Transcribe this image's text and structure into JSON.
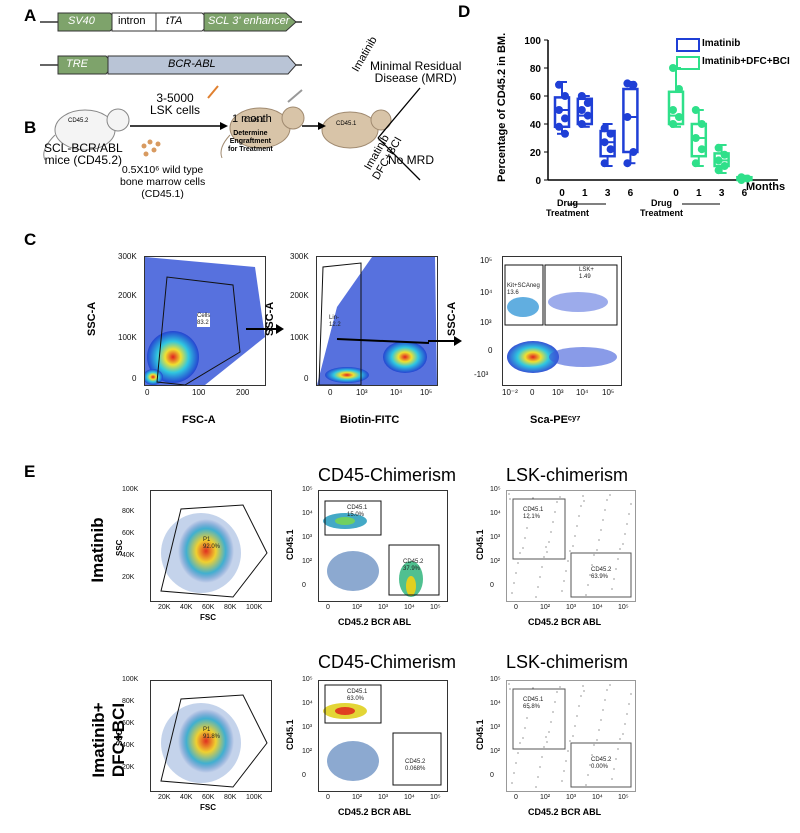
{
  "panels": {
    "a": "A",
    "b": "B",
    "c": "C",
    "d": "D",
    "e": "E"
  },
  "panel_a": {
    "row1": {
      "sv40": "SV40",
      "intron": "intron",
      "tta": "tTA",
      "enhancer": "SCL 3' enhancer"
    },
    "row2": {
      "tre": "TRE",
      "bcrabl": "BCR-ABL"
    }
  },
  "panel_b": {
    "donor_cells": "3-5000\nLSK cells",
    "donor_mouse": "SCL-BCR/ABL\nmice (CD45.2)",
    "wt_cells": "0.5X10⁶ wild type\nbone marrow cells\n(CD45.1)",
    "one_month": "1 month",
    "engraft": "Determine\nEngraftment\nfor Treatment",
    "imatinib": "Imatinib",
    "imatinib_dfc": "Imatinib\nDFC+BCI",
    "mrd": "Minimal Residual\nDisease (MRD)",
    "no_mrd": "No MRD",
    "mouse_tag1": "CD45.2",
    "mouse_tag2": "CD45.1",
    "mouse_tag3": "CD45.1"
  },
  "panel_c": {
    "plot1": {
      "ylabel": "SSC-A",
      "xlabel": "FSC-A",
      "gate": "Cells\n83.2",
      "yticks": [
        "300K",
        "200K",
        "100K",
        "0"
      ],
      "xticks": [
        "0",
        "100",
        "200"
      ]
    },
    "plot2": {
      "ylabel": "SSC-A",
      "xlabel": "Biotin-FITC",
      "gate": "Lin-\n12.2",
      "yticks": [
        "300K",
        "200K",
        "100K",
        "0"
      ],
      "xticks": [
        "0",
        "10³",
        "10⁴",
        "10⁵"
      ]
    },
    "plot3": {
      "ylabel": "SSC-A",
      "xlabel": "Sca-PEᶜʸ⁷",
      "gate1": "Kit+SCAneg\n13.6",
      "gate2": "LSK+\n1.49",
      "yticks": [
        "10⁵",
        "10⁴",
        "10³",
        "0",
        "-10³"
      ],
      "xticks": [
        "10⁻²",
        "0",
        "10³",
        "10⁴",
        "10⁵"
      ]
    }
  },
  "panel_d": {
    "ylabel": "Percentage of CD45.2 in BM.",
    "xlabel": "Months",
    "yticks": [
      "0",
      "20",
      "40",
      "60",
      "80",
      "100"
    ],
    "group_label": "Drug\nTreatment",
    "legend": [
      "Imatinib",
      "Imatinib+DFC+BCI"
    ],
    "colors": {
      "imatinib": "#1f3fd6",
      "combo": "#2fe08a"
    }
  },
  "chart_data": {
    "type": "box",
    "title": "",
    "ylabel": "Percentage of CD45.2 in BM.",
    "xlabel": "Months",
    "ylim": [
      0,
      100
    ],
    "categories": [
      "0",
      "1",
      "3",
      "6"
    ],
    "series": [
      {
        "name": "Imatinib",
        "boxes": [
          {
            "x": "0",
            "min": 33,
            "q1": 38,
            "median": 50,
            "q3": 59,
            "max": 70,
            "points": [
              68,
              60,
              50,
              44,
              38,
              33
            ]
          },
          {
            "x": "1",
            "min": 38,
            "q1": 40,
            "median": 46,
            "q3": 58,
            "max": 60,
            "points": [
              60,
              55,
              50,
              46,
              40
            ]
          },
          {
            "x": "3",
            "min": 10,
            "q1": 17,
            "median": 27,
            "q3": 35,
            "max": 40,
            "points": [
              37,
              33,
              27,
              22,
              12
            ]
          },
          {
            "x": "6",
            "min": 12,
            "q1": 20,
            "median": 45,
            "q3": 65,
            "max": 70,
            "points": [
              69,
              68,
              45,
              20,
              12
            ]
          }
        ]
      },
      {
        "name": "Imatinib+DFC+BCI",
        "boxes": [
          {
            "x": "0",
            "min": 38,
            "q1": 40,
            "median": 46,
            "q3": 63,
            "max": 80,
            "points": [
              80,
              65,
              50,
              45,
              40
            ]
          },
          {
            "x": "1",
            "min": 10,
            "q1": 17,
            "median": 30,
            "q3": 40,
            "max": 50,
            "points": [
              50,
              40,
              30,
              22,
              12
            ]
          },
          {
            "x": "3",
            "min": 5,
            "q1": 10,
            "median": 14,
            "q3": 19,
            "max": 25,
            "points": [
              23,
              18,
              14,
              10,
              7
            ]
          },
          {
            "x": "6",
            "min": 0,
            "q1": 0,
            "median": 1,
            "q3": 2,
            "max": 3,
            "points": [
              2,
              1,
              0
            ]
          }
        ]
      }
    ]
  },
  "panel_e": {
    "titles": {
      "cd45": "CD45-Chimerism",
      "lsk": "LSK-chimerism"
    },
    "row1_label": "Imatinib",
    "row2_label": "Imatinib+\nDFC+BCI",
    "fsc": "FSC",
    "ssc": "SSC",
    "cd451": "CD45.1",
    "cd452bcr": "CD45.2 BCR ABL",
    "fsc_yticks": [
      "100K",
      "80K",
      "60K",
      "40K",
      "20K"
    ],
    "fsc_xticks": [
      "20K",
      "40K",
      "60K",
      "80K",
      "100K"
    ],
    "log_yticks": [
      "10⁵",
      "10⁴",
      "10³",
      "10²",
      "0"
    ],
    "log_xticks": [
      "0",
      "10²",
      "10³",
      "10⁴",
      "10⁵"
    ],
    "r1": {
      "p1": "P1\n92.0%",
      "cd451": "CD45.1\n15.0%",
      "cd452": "CD45.2\n37.9%",
      "lsk451": "CD45.1\n12.1%",
      "lsk452": "CD45.2\n63.9%"
    },
    "r2": {
      "p1": "P1\n91.8%",
      "cd451": "CD45.1\n63.0%",
      "cd452": "CD45.2\n0.068%",
      "lsk451": "CD45.1\n65.8%",
      "lsk452": "CD45.2\n0.00%"
    }
  }
}
